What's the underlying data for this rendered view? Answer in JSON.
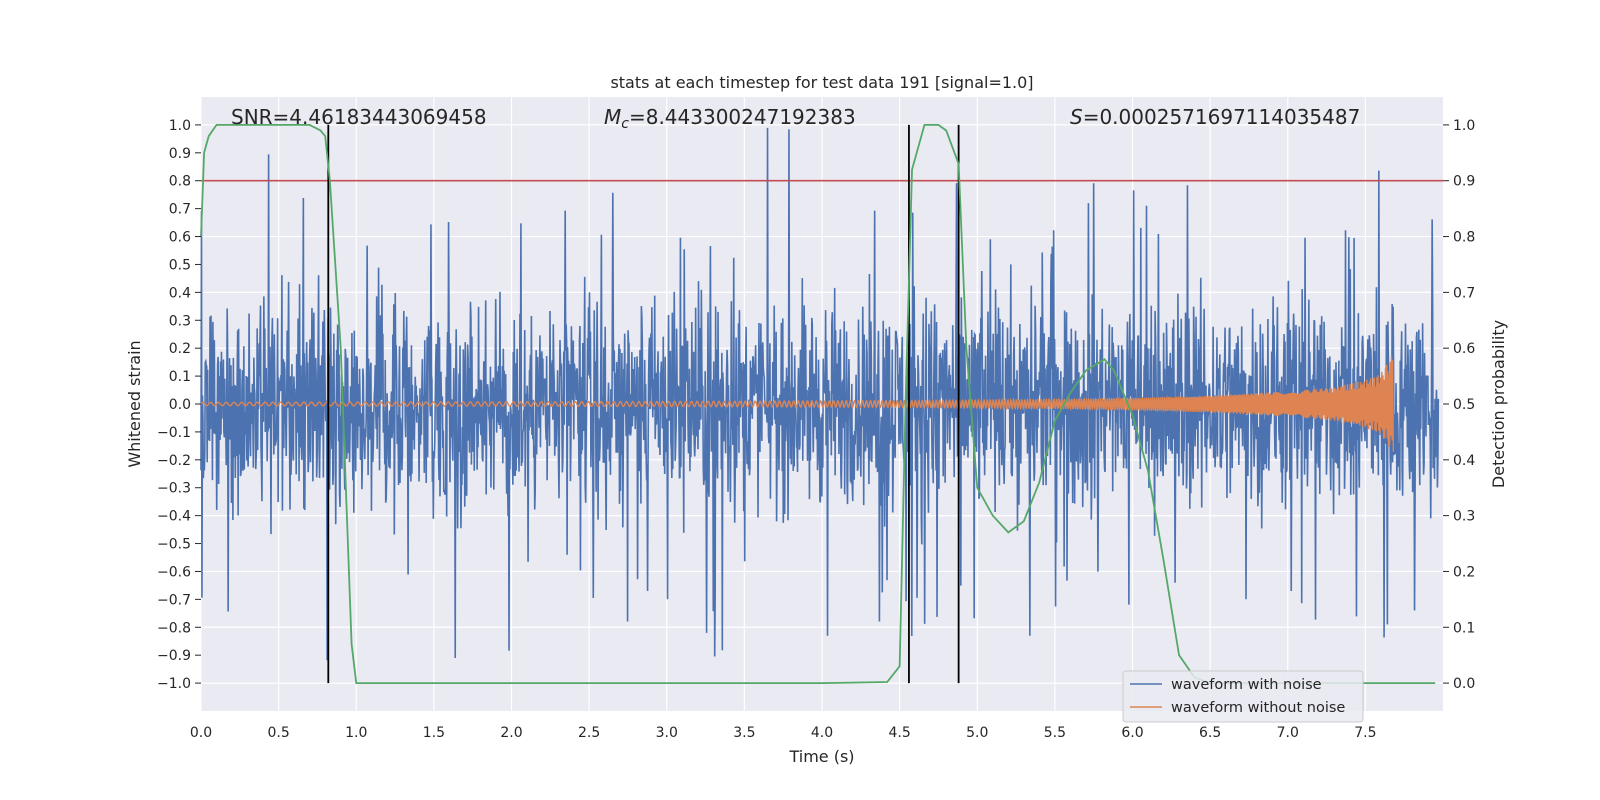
{
  "chart_data": {
    "type": "line",
    "title": "stats at each timestep for test data 191 [signal=1.0]",
    "xlabel": "Time (s)",
    "ylabel_left": "Whitened strain",
    "ylabel_right": "Detection probability",
    "xlim": [
      0.0,
      8.0
    ],
    "ylim_left": [
      -1.1,
      1.1
    ],
    "ylim_right": [
      -0.05,
      1.05
    ],
    "x_ticks": [
      "0.0",
      "0.5",
      "1.0",
      "1.5",
      "2.0",
      "2.5",
      "3.0",
      "3.5",
      "4.0",
      "4.5",
      "5.0",
      "5.5",
      "6.0",
      "6.5",
      "7.0",
      "7.5"
    ],
    "y_left_ticks": [
      "1.0",
      "0.9",
      "0.8",
      "0.7",
      "0.6",
      "0.5",
      "0.4",
      "0.3",
      "0.2",
      "0.1",
      "0.0",
      "−0.1",
      "−0.2",
      "−0.3",
      "−0.4",
      "−0.5",
      "−0.6",
      "−0.7",
      "−0.8",
      "−0.9",
      "−1.0"
    ],
    "y_right_ticks": [
      "1.0",
      "0.9",
      "0.8",
      "0.7",
      "0.6",
      "0.5",
      "0.4",
      "0.3",
      "0.2",
      "0.1",
      "0.0"
    ],
    "grid": true,
    "legend_position": "bottom-right",
    "annotations": {
      "snr": "SNR=4.46183443069458",
      "mc_symbol": "M",
      "mc_subscript": "c",
      "mc_value": "=8.443300247192383",
      "s_symbol": "S",
      "s_value": "=0.0002571697114035487"
    },
    "series": [
      {
        "name": "waveform with noise",
        "color": "#4c72b0",
        "style": "dense noise, whitened strain, roughly uniform amplitude envelope between about -1.0 and 1.0 across 0-8 s",
        "envelope_max": [
          0.9,
          0.8,
          0.75,
          0.8,
          0.78,
          0.8,
          0.72,
          1.0,
          0.75,
          0.8,
          0.72,
          0.8,
          0.8,
          0.78,
          0.8,
          0.85
        ],
        "envelope_min": [
          -0.75,
          -0.95,
          -0.72,
          -1.0,
          -0.72,
          -0.78,
          -0.95,
          -0.8,
          -0.85,
          -0.85,
          -0.9,
          -0.82,
          -0.75,
          -0.78,
          -0.8,
          -0.95
        ]
      },
      {
        "name": "waveform without noise",
        "color": "#dd8452",
        "style": "chirp signal growing in amplitude, ending near 7.68 s",
        "x": [
          0.0,
          1.0,
          2.0,
          3.0,
          4.0,
          4.5,
          5.0,
          5.5,
          6.0,
          6.5,
          7.0,
          7.3,
          7.5,
          7.6,
          7.68
        ],
        "amplitude": [
          0.006,
          0.007,
          0.008,
          0.009,
          0.011,
          0.012,
          0.014,
          0.017,
          0.022,
          0.03,
          0.045,
          0.06,
          0.085,
          0.11,
          0.18
        ]
      },
      {
        "color": "#55a868",
        "axis": "right",
        "x": [
          0.0,
          0.02,
          0.05,
          0.1,
          0.15,
          0.3,
          0.5,
          0.7,
          0.77,
          0.8,
          0.83,
          0.9,
          0.97,
          1.0,
          1.1,
          2.0,
          3.0,
          4.0,
          4.42,
          4.5,
          4.54,
          4.58,
          4.66,
          4.75,
          4.8,
          4.88,
          4.93,
          5.0,
          5.1,
          5.2,
          5.3,
          5.4,
          5.5,
          5.6,
          5.7,
          5.76,
          5.82,
          5.88,
          6.0,
          6.1,
          6.2,
          6.3,
          6.4,
          6.5,
          7.0,
          7.5,
          7.95
        ],
        "y": [
          0.8,
          0.95,
          0.98,
          1.0,
          1.0,
          1.0,
          1.0,
          1.0,
          0.99,
          0.98,
          0.9,
          0.6,
          0.07,
          0.0,
          0.0,
          0.0,
          0.0,
          0.0,
          0.002,
          0.03,
          0.52,
          0.92,
          1.0,
          1.0,
          0.99,
          0.93,
          0.6,
          0.35,
          0.3,
          0.27,
          0.29,
          0.36,
          0.47,
          0.52,
          0.56,
          0.57,
          0.58,
          0.56,
          0.48,
          0.38,
          0.22,
          0.05,
          0.01,
          0.0,
          0.0,
          0.0,
          0.0
        ]
      },
      {
        "color": "#c44e52",
        "axis": "right",
        "style": "horizontal threshold line",
        "y": [
          0.9
        ]
      }
    ],
    "vertical_markers": {
      "color": "#000000",
      "x": [
        0.82,
        4.56,
        4.88
      ]
    }
  },
  "legend": {
    "noise_label": "waveform with noise",
    "clean_label": "waveform without noise"
  }
}
